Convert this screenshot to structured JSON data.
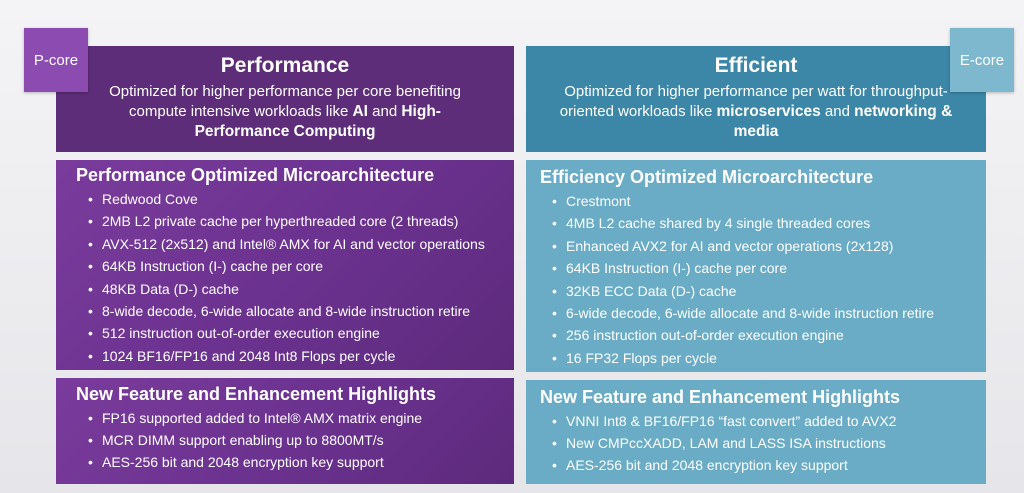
{
  "pcore": {
    "tag": "P-core",
    "title": "Performance",
    "desc_before": "Optimized for higher performance per core benefiting compute intensive workloads like ",
    "desc_bold1": "AI",
    "desc_mid": " and ",
    "desc_bold2": "High-Performance Computing",
    "micro_title": "Performance Optimized Microarchitecture",
    "micro_items": [
      "Redwood Cove",
      "2MB L2  private cache per hyperthreaded core (2 threads)",
      "AVX-512 (2x512) and Intel® AMX for AI and vector operations",
      "64KB Instruction (I-) cache per core",
      "48KB Data (D-) cache",
      "8-wide decode, 6-wide allocate and 8-wide instruction retire",
      "512 instruction out-of-order execution engine",
      "1024 BF16/FP16 and 2048 Int8 Flops per cycle"
    ],
    "feat_title": "New Feature and Enhancement Highlights",
    "feat_items": [
      "FP16 supported added to Intel® AMX matrix engine",
      "MCR DIMM support enabling up to 8800MT/s",
      "AES-256 bit and 2048 encryption key support"
    ]
  },
  "ecore": {
    "tag": "E-core",
    "title": "Efficient",
    "desc_before": "Optimized for higher performance per watt for throughput-oriented workloads like ",
    "desc_bold1": "microservices",
    "desc_mid": " and ",
    "desc_bold2": "networking & media",
    "micro_title": "Efficiency Optimized Microarchitecture",
    "micro_items": [
      "Crestmont",
      "4MB L2 cache shared by 4 single threaded cores",
      "Enhanced AVX2 for AI and vector operations (2x128)",
      "64KB Instruction (I-) cache per core",
      "32KB ECC Data (D-) cache",
      "6-wide decode, 6-wide allocate and 8-wide instruction retire",
      "256 instruction out-of-order execution engine",
      "16 FP32 Flops per cycle"
    ],
    "feat_title": "New Feature and Enhancement Highlights",
    "feat_items": [
      "VNNI Int8 & BF16/FP16 “fast convert” added to AVX2",
      "New CMPccXADD, LAM and LASS ISA instructions",
      "AES-256 bit and 2048 encryption key support"
    ]
  }
}
